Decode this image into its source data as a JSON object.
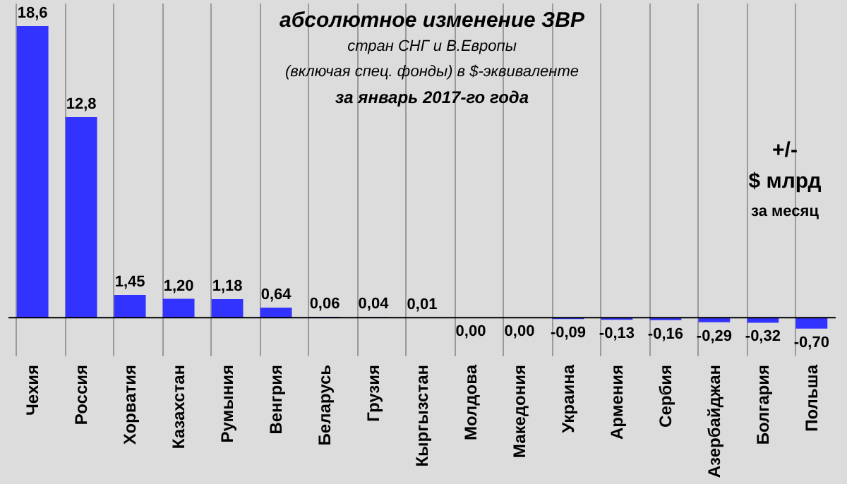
{
  "chart_data": {
    "type": "bar",
    "title": "абсолютное изменение  ЗВР",
    "subtitle": "стран СНГ и В.Европы\n(включая  спец. фонды) в $-эквиваленте\nза январь 2017-го года",
    "annotations": [
      "+/-",
      "$ млрд",
      "за месяц"
    ],
    "categories": [
      "Чехия",
      "Россия",
      "Хорватия",
      "Казахстан",
      "Румыния",
      "Венгрия",
      "Беларусь",
      "Грузия",
      "Кыргызстан",
      "Молдова",
      "Македония",
      "Украина",
      "Армения",
      "Сербия",
      "Азербайджан",
      "Болгария",
      "Польша"
    ],
    "values": [
      18.6,
      12.8,
      1.45,
      1.2,
      1.18,
      0.64,
      0.06,
      0.04,
      0.01,
      0,
      0,
      -0.09,
      -0.13,
      -0.16,
      -0.29,
      -0.32,
      -0.7
    ],
    "value_labels": [
      "18,6",
      "12,8",
      "1,45",
      "1,20",
      "1,18",
      "0,64",
      "0,06",
      "0,04",
      "0,01",
      "0,00",
      "0,00",
      "-0,09",
      "-0,13",
      "-0,16",
      "-0,29",
      "-0,32",
      "-0,70"
    ],
    "color": "#3333ff",
    "grid": "x"
  }
}
